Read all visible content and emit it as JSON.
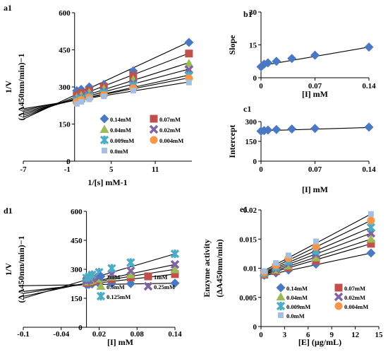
{
  "colors": {
    "series": [
      "#4a78c2",
      "#c0504d",
      "#9bbb59",
      "#8064a2",
      "#4bacc6",
      "#f79646",
      "#a5bfe0"
    ],
    "single": "#4a78c2",
    "d1": [
      "#4a78c2",
      "#c0504d",
      "#9bbb59",
      "#8064a2",
      "#4bacc6"
    ]
  },
  "chart_data": [
    {
      "id": "a1",
      "type": "scatter",
      "panel_label": "a1",
      "xlabel": "1/[s] mM-1",
      "ylabel_lines": [
        "1/V",
        "(ΔA450nm/min)−1"
      ],
      "xlim": [
        -7,
        16
      ],
      "ylim": [
        0,
        600
      ],
      "xticks": [
        -7,
        -1,
        5,
        11
      ],
      "xtick_labels": [
        "-7",
        "-1",
        "5",
        "11"
      ],
      "yticks": [
        0,
        150,
        300,
        450,
        600
      ],
      "ytick_labels": [
        "0",
        "150",
        "300",
        "450",
        "600"
      ],
      "legend_position": "bottom-right",
      "x": [
        0.3,
        0.9,
        2.0,
        4.0,
        8.0,
        15.6
      ],
      "series": [
        {
          "name": "0.14mM",
          "marker": "diamond",
          "values": [
            285,
            290,
            300,
            310,
            365,
            480
          ]
        },
        {
          "name": "0.07mM",
          "marker": "square",
          "values": [
            265,
            275,
            285,
            300,
            345,
            435
          ]
        },
        {
          "name": "0.04mM",
          "marker": "triangle",
          "values": [
            258,
            265,
            278,
            292,
            330,
            395
          ]
        },
        {
          "name": "0.02mM",
          "marker": "x",
          "values": [
            250,
            258,
            268,
            283,
            315,
            370
          ]
        },
        {
          "name": "0.009mM",
          "marker": "star",
          "values": [
            245,
            252,
            262,
            275,
            305,
            345
          ]
        },
        {
          "name": "0.004mM",
          "marker": "circle",
          "values": [
            240,
            248,
            257,
            268,
            295,
            335
          ]
        },
        {
          "name": "0.0mM",
          "marker": "smallsquare",
          "values": [
            232,
            240,
            250,
            262,
            285,
            318
          ]
        }
      ],
      "fit_lines": [
        {
          "x": [
            -7,
            15.6
          ],
          "y": [
            170,
            482
          ]
        },
        {
          "x": [
            -7,
            15.6
          ],
          "y": [
            178,
            436
          ]
        },
        {
          "x": [
            -7,
            15.6
          ],
          "y": [
            186,
            398
          ]
        },
        {
          "x": [
            -7,
            15.6
          ],
          "y": [
            193,
            372
          ]
        },
        {
          "x": [
            -7,
            15.6
          ],
          "y": [
            200,
            348
          ]
        },
        {
          "x": [
            -7,
            15.6
          ],
          "y": [
            206,
            337
          ]
        },
        {
          "x": [
            -7,
            15.6
          ],
          "y": [
            212,
            320
          ]
        }
      ]
    },
    {
      "id": "b1",
      "type": "scatter",
      "panel_label": "b1",
      "xlabel": "[I] mM",
      "ylabel": "Slope",
      "xlim": [
        0,
        0.14
      ],
      "ylim": [
        0,
        30
      ],
      "xticks": [
        0,
        0.07,
        0.14
      ],
      "xtick_labels": [
        "0",
        "0.07",
        "0.14"
      ],
      "yticks": [
        0,
        15,
        30
      ],
      "ytick_labels": [
        "0",
        "15",
        "30"
      ],
      "x": [
        0,
        0.004,
        0.009,
        0.02,
        0.04,
        0.07,
        0.14
      ],
      "values": [
        5.0,
        6.2,
        6.8,
        7.5,
        8.8,
        10.3,
        14.0
      ],
      "fit_line": {
        "x": [
          0,
          0.14
        ],
        "y": [
          5.5,
          14.0
        ]
      }
    },
    {
      "id": "c1",
      "type": "scatter",
      "panel_label": "c1",
      "xlabel": "[I] mM",
      "ylabel": "Intercept",
      "xlim": [
        0,
        0.14
      ],
      "ylim": [
        0,
        300
      ],
      "xticks": [
        0,
        0.07,
        0.14
      ],
      "xtick_labels": [
        "0",
        "0.07",
        "0.14"
      ],
      "yticks": [
        0,
        150,
        300
      ],
      "ytick_labels": [
        "0",
        "150",
        "300"
      ],
      "x": [
        0,
        0.004,
        0.009,
        0.02,
        0.04,
        0.07,
        0.14
      ],
      "values": [
        228,
        232,
        236,
        240,
        244,
        248,
        258
      ],
      "fit_line": {
        "x": [
          0,
          0.14
        ],
        "y": [
          230,
          255
        ]
      }
    },
    {
      "id": "d1",
      "type": "scatter",
      "panel_label": "d1",
      "xlabel": "[I] mM",
      "ylabel_lines": [
        "1/V",
        "(ΔA450nm/min)−1"
      ],
      "xlim": [
        -0.1,
        0.14
      ],
      "ylim": [
        0,
        600
      ],
      "xticks": [
        -0.1,
        -0.04,
        0.02,
        0.08,
        0.14
      ],
      "xtick_labels": [
        "-0.1",
        "-0.04",
        "0.02",
        "0.08",
        "0.14"
      ],
      "yticks": [
        0,
        150,
        300,
        450,
        600
      ],
      "ytick_labels": [
        "0",
        "150",
        "300",
        "450",
        "600"
      ],
      "legend_position": "bottom-right",
      "x": [
        0,
        0.004,
        0.009,
        0.02,
        0.04,
        0.07,
        0.14
      ],
      "series": [
        {
          "name": "2mM",
          "marker": "diamond",
          "values": [
            220,
            222,
            224,
            226,
            225,
            226,
            228
          ]
        },
        {
          "name": "1mM",
          "marker": "square",
          "values": [
            230,
            232,
            236,
            242,
            248,
            258,
            275
          ]
        },
        {
          "name": "0.5mM",
          "marker": "triangle",
          "values": [
            235,
            238,
            243,
            250,
            260,
            272,
            298
          ]
        },
        {
          "name": "0.25mM",
          "marker": "x",
          "values": [
            240,
            245,
            252,
            260,
            275,
            292,
            325
          ]
        },
        {
          "name": "0.125mM",
          "marker": "star",
          "values": [
            255,
            262,
            272,
            285,
            305,
            335,
            380
          ]
        }
      ],
      "fit_lines": [
        {
          "x": [
            -0.1,
            0.14
          ],
          "y": [
            215,
            228
          ]
        },
        {
          "x": [
            -0.1,
            0.14
          ],
          "y": [
            185,
            275
          ]
        },
        {
          "x": [
            -0.1,
            0.14
          ],
          "y": [
            175,
            300
          ]
        },
        {
          "x": [
            -0.1,
            0.14
          ],
          "y": [
            160,
            325
          ]
        },
        {
          "x": [
            -0.1,
            0.14
          ],
          "y": [
            150,
            380
          ]
        }
      ]
    },
    {
      "id": "e1",
      "type": "scatter",
      "panel_label": "e1",
      "xlabel": "[E] (µg/mL)",
      "ylabel_lines": [
        "Enzyme activity",
        "(ΔA450nm/min)"
      ],
      "xlim": [
        0,
        15
      ],
      "ylim": [
        0,
        0.02
      ],
      "xticks": [
        0,
        3,
        6,
        9,
        12,
        15
      ],
      "xtick_labels": [
        "0",
        "3",
        "6",
        "9",
        "12",
        "15"
      ],
      "yticks": [
        0,
        0.005,
        0.01,
        0.015,
        0.02
      ],
      "ytick_labels": [
        "0",
        "0.005",
        "0.01",
        "0.015",
        "0.02"
      ],
      "legend_position": "bottom-right",
      "x": [
        0.4,
        1.9,
        3.5,
        7.0,
        14.0
      ],
      "series": [
        {
          "name": "0.14mM",
          "marker": "diamond",
          "values": [
            0.0088,
            0.0092,
            0.0097,
            0.0107,
            0.0126
          ]
        },
        {
          "name": "0.07mM",
          "marker": "square",
          "values": [
            0.0089,
            0.0095,
            0.0101,
            0.0113,
            0.0142
          ]
        },
        {
          "name": "0.04mM",
          "marker": "triangle",
          "values": [
            0.009,
            0.0097,
            0.0104,
            0.0118,
            0.015
          ]
        },
        {
          "name": "0.02mM",
          "marker": "x",
          "values": [
            0.0091,
            0.0099,
            0.0108,
            0.0124,
            0.016
          ]
        },
        {
          "name": "0.009mM",
          "marker": "star",
          "values": [
            0.0092,
            0.0102,
            0.0112,
            0.013,
            0.017
          ]
        },
        {
          "name": "0.004mM",
          "marker": "circle",
          "values": [
            0.0093,
            0.0105,
            0.0117,
            0.0137,
            0.0182
          ]
        },
        {
          "name": "0.0mM",
          "marker": "smallsquare",
          "values": [
            0.0095,
            0.0109,
            0.0122,
            0.0146,
            0.0193
          ]
        }
      ],
      "fit_lines": [
        {
          "x": [
            0,
            14
          ],
          "y": [
            0.0086,
            0.0126
          ]
        },
        {
          "x": [
            0,
            14
          ],
          "y": [
            0.0087,
            0.0142
          ]
        },
        {
          "x": [
            0,
            14
          ],
          "y": [
            0.0088,
            0.015
          ]
        },
        {
          "x": [
            0,
            14
          ],
          "y": [
            0.0089,
            0.016
          ]
        },
        {
          "x": [
            0,
            14
          ],
          "y": [
            0.009,
            0.017
          ]
        },
        {
          "x": [
            0,
            14
          ],
          "y": [
            0.0091,
            0.0182
          ]
        },
        {
          "x": [
            0,
            14
          ],
          "y": [
            0.0093,
            0.0193
          ]
        }
      ]
    }
  ]
}
